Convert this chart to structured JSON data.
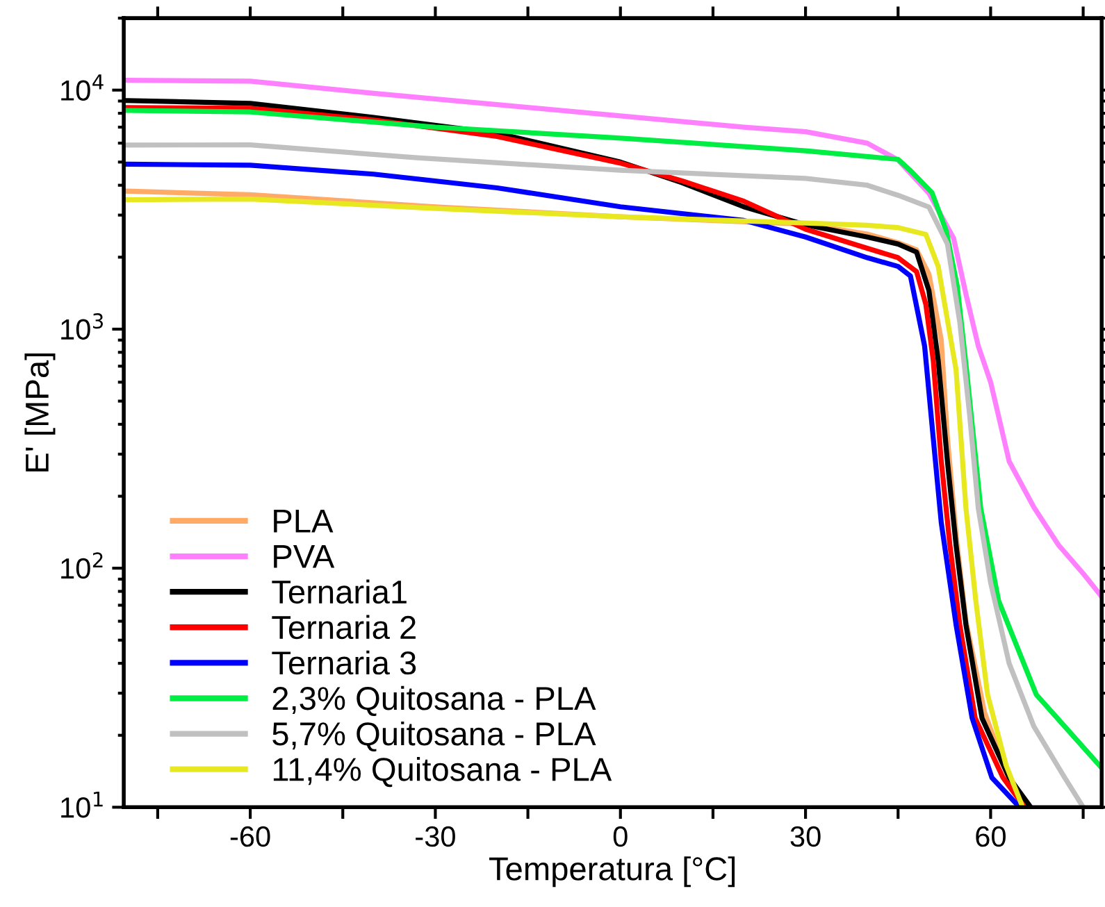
{
  "chart_data": {
    "type": "line",
    "xlabel": "Temperatura [°C]",
    "ylabel": "E' [MPa]",
    "log": "y",
    "xlim": [
      -80.5,
      78
    ],
    "ylim": [
      10,
      20000
    ],
    "xticks": [
      {
        "value": -75,
        "label": null
      },
      -60,
      {
        "value": -45,
        "label": null
      },
      -30,
      {
        "value": -15,
        "label": null
      },
      0,
      {
        "value": 15,
        "label": null
      },
      30,
      {
        "value": 45,
        "label": null
      },
      60,
      {
        "value": 75,
        "label": null
      }
    ],
    "yticks": [
      {
        "value": 10,
        "label": "10$^{1}$"
      },
      {
        "value": 100,
        "label": "10$^{2}$"
      },
      {
        "value": 1000,
        "label": "10$^{3}$"
      },
      {
        "value": 10000,
        "label": "10$^{4}$"
      }
    ],
    "grid": false,
    "legend": "bottom left",
    "marker": "none",
    "line_style": "solid",
    "series": [
      {
        "name": "PLA",
        "color": "#ffaa66",
        "x": [
          -80,
          -60,
          -30,
          0,
          30,
          40,
          45,
          48,
          50,
          52,
          53,
          54.5,
          56,
          59,
          63,
          66
        ],
        "values": [
          3780,
          3650,
          3250,
          2950,
          2750,
          2500,
          2300,
          2150,
          1700,
          900,
          350,
          130,
          60,
          25,
          13,
          10
        ]
      },
      {
        "name": "PVA",
        "color": "#ff80ff",
        "x": [
          -80,
          -60,
          -40,
          -20,
          0,
          20,
          30,
          40,
          45,
          50,
          54,
          56,
          58,
          60,
          63,
          67,
          71,
          75,
          78
        ],
        "values": [
          11000,
          10900,
          9700,
          8700,
          7800,
          7000,
          6700,
          6000,
          5100,
          3700,
          2400,
          1400,
          850,
          600,
          280,
          180,
          125,
          95,
          76
        ]
      },
      {
        "name": "Ternaria1",
        "color": "#000000",
        "x": [
          -80,
          -60,
          -40,
          -20,
          0,
          10,
          20,
          30,
          40,
          45,
          48,
          50,
          51.5,
          53,
          54.4,
          56,
          58.6,
          63,
          66.5
        ],
        "values": [
          9040,
          8800,
          7690,
          6600,
          5000,
          4100,
          3250,
          2730,
          2430,
          2270,
          2100,
          1450,
          740,
          280,
          125,
          58,
          23.6,
          13.3,
          10
        ]
      },
      {
        "name": "Ternaria 2",
        "color": "#ff0000",
        "x": [
          -80,
          -60,
          -40,
          -20,
          0,
          10,
          20,
          30,
          40,
          45,
          48,
          49.5,
          50.7,
          52,
          53.4,
          55,
          57.5,
          62,
          65.5
        ],
        "values": [
          8450,
          8400,
          7500,
          6400,
          4950,
          4170,
          3430,
          2620,
          2180,
          1990,
          1740,
          1270,
          740,
          280,
          125,
          58,
          23.6,
          13.3,
          10
        ]
      },
      {
        "name": "Ternaria 3",
        "color": "#0000ff",
        "x": [
          -80,
          -60,
          -40,
          -20,
          0,
          20,
          30,
          40,
          45,
          47,
          49.3,
          50.7,
          52,
          54.4,
          57,
          60.2,
          64.7
        ],
        "values": [
          4900,
          4850,
          4450,
          3900,
          3250,
          2850,
          2430,
          1990,
          1830,
          1670,
          850,
          350,
          155,
          58,
          23.6,
          13.3,
          10
        ]
      },
      {
        "name": "2,3% Quitosana - PLA",
        "color": "#00ee44",
        "x": [
          -80,
          -60,
          -30,
          0,
          30,
          45,
          47.1,
          50.5,
          52.8,
          54.6,
          56.1,
          58.4,
          61.3,
          67.4,
          78
        ],
        "values": [
          8220,
          8100,
          7000,
          6300,
          5570,
          5130,
          4580,
          3720,
          2580,
          1510,
          675,
          178,
          73,
          29.6,
          14.6
        ]
      },
      {
        "name": "5,7% Quitosana - PLA",
        "color": "#c0c0c0",
        "x": [
          -80,
          -60,
          -33,
          0,
          30,
          40,
          45,
          50,
          53,
          55,
          56.6,
          58,
          60,
          63,
          67,
          72,
          75
        ],
        "values": [
          5890,
          5900,
          5210,
          4620,
          4270,
          4000,
          3630,
          3240,
          2270,
          1070,
          437,
          178,
          87,
          40,
          21.8,
          13.3,
          10
        ]
      },
      {
        "name": "11,4% Quitosana - PLA",
        "color": "#e8e820",
        "x": [
          -80,
          -60,
          -30,
          0,
          30,
          40,
          45,
          49.5,
          51.5,
          54.4,
          56,
          57.6,
          59.5,
          62.5,
          65.2
        ],
        "values": [
          3480,
          3500,
          3200,
          2950,
          2780,
          2720,
          2660,
          2490,
          1830,
          675,
          178,
          73,
          29.6,
          15,
          10
        ]
      }
    ]
  }
}
